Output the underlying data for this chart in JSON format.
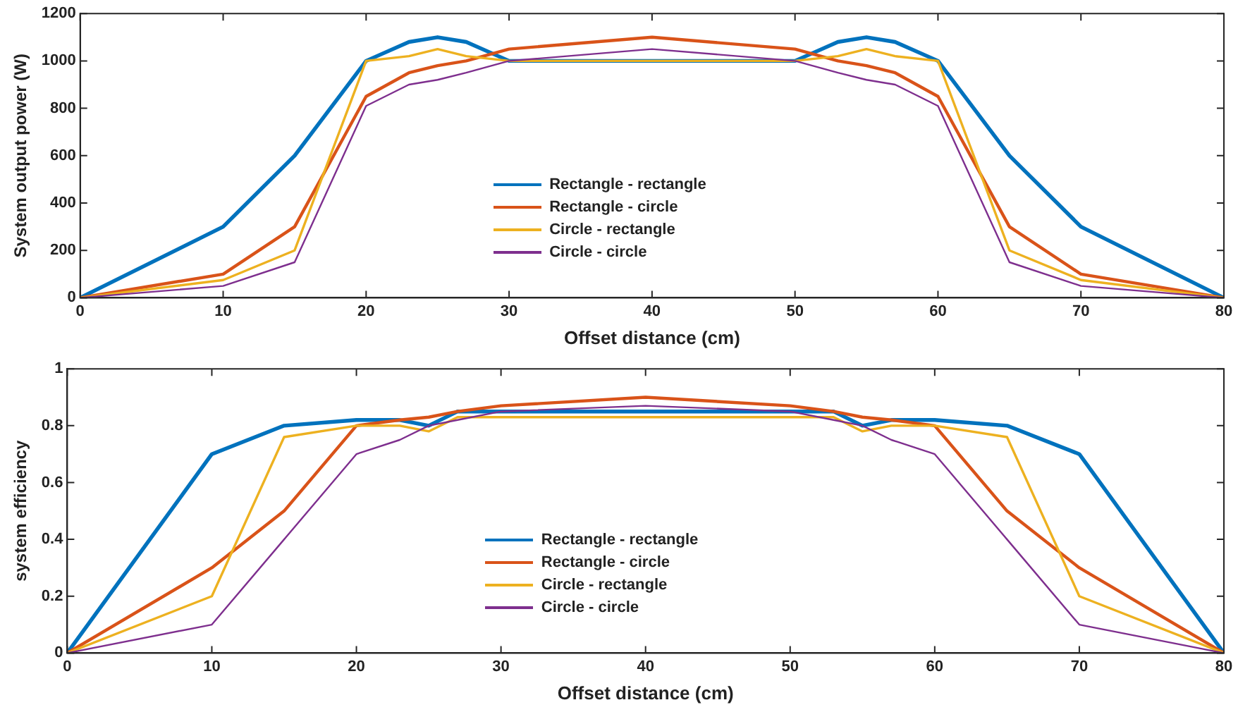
{
  "chart_data": [
    {
      "type": "line",
      "ylabel": "System output power (W)",
      "xlabel": "Offset distance (cm)",
      "x": [
        0,
        10,
        15,
        20,
        23,
        25,
        27,
        30,
        40,
        50,
        53,
        55,
        57,
        60,
        65,
        70,
        80
      ],
      "xlim": [
        0,
        80
      ],
      "xticks": [
        0,
        10,
        20,
        30,
        40,
        50,
        60,
        70,
        80
      ],
      "ylim": [
        0,
        1200
      ],
      "yticks": [
        0,
        200,
        400,
        600,
        800,
        1000,
        1200
      ],
      "grid": false,
      "legend": "center",
      "marker": "none",
      "line_style": "solid",
      "series": [
        {
          "name": "Rectangle - rectangle",
          "color": "#0072bd",
          "values": [
            0,
            300,
            600,
            1000,
            1080,
            1100,
            1080,
            1000,
            1000,
            1000,
            1080,
            1100,
            1080,
            1000,
            600,
            300,
            0
          ]
        },
        {
          "name": "Rectangle - circle",
          "color": "#d95319",
          "values": [
            0,
            100,
            300,
            850,
            950,
            980,
            1000,
            1050,
            1100,
            1050,
            1000,
            980,
            950,
            850,
            300,
            100,
            0
          ]
        },
        {
          "name": "Circle - rectangle",
          "color": "#edb120",
          "values": [
            0,
            75,
            200,
            1000,
            1020,
            1050,
            1020,
            1000,
            1000,
            1000,
            1020,
            1050,
            1020,
            1000,
            200,
            75,
            0
          ]
        },
        {
          "name": "Circle - circle",
          "color": "#7e2f8e",
          "values": [
            0,
            50,
            150,
            810,
            900,
            920,
            950,
            1000,
            1050,
            1000,
            950,
            920,
            900,
            810,
            150,
            50,
            0
          ]
        }
      ]
    },
    {
      "type": "line",
      "ylabel": "system efficiency",
      "xlabel": "Offset distance (cm)",
      "x": [
        0,
        10,
        15,
        20,
        23,
        25,
        27,
        30,
        40,
        50,
        53,
        55,
        57,
        60,
        65,
        70,
        80
      ],
      "xlim": [
        0,
        80
      ],
      "xticks": [
        0,
        10,
        20,
        30,
        40,
        50,
        60,
        70,
        80
      ],
      "ylim": [
        0,
        1
      ],
      "yticks": [
        0,
        0.2,
        0.4,
        0.6,
        0.8,
        1
      ],
      "grid": false,
      "legend": "center",
      "marker": "none",
      "line_style": "solid",
      "series": [
        {
          "name": "Rectangle - rectangle",
          "color": "#0072bd",
          "values": [
            0,
            0.7,
            0.8,
            0.82,
            0.82,
            0.8,
            0.85,
            0.85,
            0.85,
            0.85,
            0.85,
            0.8,
            0.82,
            0.82,
            0.8,
            0.7,
            0
          ]
        },
        {
          "name": "Rectangle - circle",
          "color": "#d95319",
          "values": [
            0,
            0.3,
            0.5,
            0.8,
            0.82,
            0.83,
            0.85,
            0.87,
            0.9,
            0.87,
            0.85,
            0.83,
            0.82,
            0.8,
            0.5,
            0.3,
            0
          ]
        },
        {
          "name": "Circle - rectangle",
          "color": "#edb120",
          "values": [
            0,
            0.2,
            0.76,
            0.8,
            0.8,
            0.78,
            0.83,
            0.83,
            0.83,
            0.83,
            0.83,
            0.78,
            0.8,
            0.8,
            0.76,
            0.2,
            0
          ]
        },
        {
          "name": "Circle - circle",
          "color": "#7e2f8e",
          "values": [
            0,
            0.1,
            0.4,
            0.7,
            0.75,
            0.8,
            0.82,
            0.85,
            0.87,
            0.85,
            0.82,
            0.8,
            0.75,
            0.7,
            0.4,
            0.1,
            0
          ]
        }
      ]
    }
  ]
}
